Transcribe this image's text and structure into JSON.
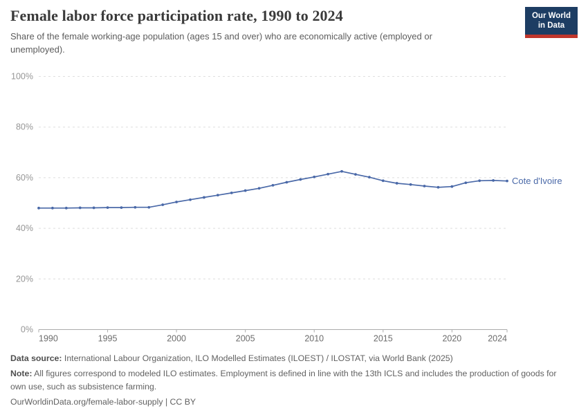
{
  "header": {
    "title": "Female labor force participation rate, 1990 to 2024",
    "subtitle": "Share of the female working-age population (ages 15 and over) who are economically active (employed or unemployed)."
  },
  "logo": {
    "line1": "Our World",
    "line2": "in Data",
    "bg_color": "#1d3d63",
    "accent_color": "#c0362c"
  },
  "chart_data": {
    "type": "line",
    "title": "Female labor force participation rate, 1990 to 2024",
    "xlabel": "",
    "ylabel": "",
    "xlim": [
      1990,
      2024
    ],
    "ylim": [
      0,
      100
    ],
    "grid": "horizontal-dashed",
    "legend_position": "end-of-line-label",
    "x_ticks": [
      1990,
      1995,
      2000,
      2005,
      2010,
      2015,
      2020,
      2024
    ],
    "y_ticks": [
      0,
      20,
      40,
      60,
      80,
      100
    ],
    "y_tick_suffix": "%",
    "x": [
      1990,
      1991,
      1992,
      1993,
      1994,
      1995,
      1996,
      1997,
      1998,
      1999,
      2000,
      2001,
      2002,
      2003,
      2004,
      2005,
      2006,
      2007,
      2008,
      2009,
      2010,
      2011,
      2012,
      2013,
      2014,
      2015,
      2016,
      2017,
      2018,
      2019,
      2020,
      2021,
      2022,
      2023,
      2024
    ],
    "series": [
      {
        "name": "Cote d'Ivoire",
        "color": "#4a69a8",
        "values": [
          48.0,
          48.0,
          48.0,
          48.1,
          48.1,
          48.2,
          48.2,
          48.3,
          48.3,
          49.3,
          50.4,
          51.3,
          52.2,
          53.1,
          54.0,
          54.9,
          55.8,
          57.0,
          58.2,
          59.3,
          60.3,
          61.4,
          62.5,
          61.3,
          60.2,
          58.8,
          57.8,
          57.3,
          56.7,
          56.2,
          56.5,
          58.0,
          58.8,
          58.9,
          58.7
        ]
      }
    ]
  },
  "footer": {
    "data_source_label": "Data source:",
    "data_source_text": "International Labour Organization, ILO Modelled Estimates (ILOEST) / ILOSTAT, via World Bank (2025)",
    "note_label": "Note:",
    "note_text": "All figures correspond to modeled ILO estimates. Employment is defined in line with the 13th ICLS and includes the production of goods for own use, such as subsistence farming.",
    "permalink": "OurWorldinData.org/female-labor-supply | CC BY"
  }
}
